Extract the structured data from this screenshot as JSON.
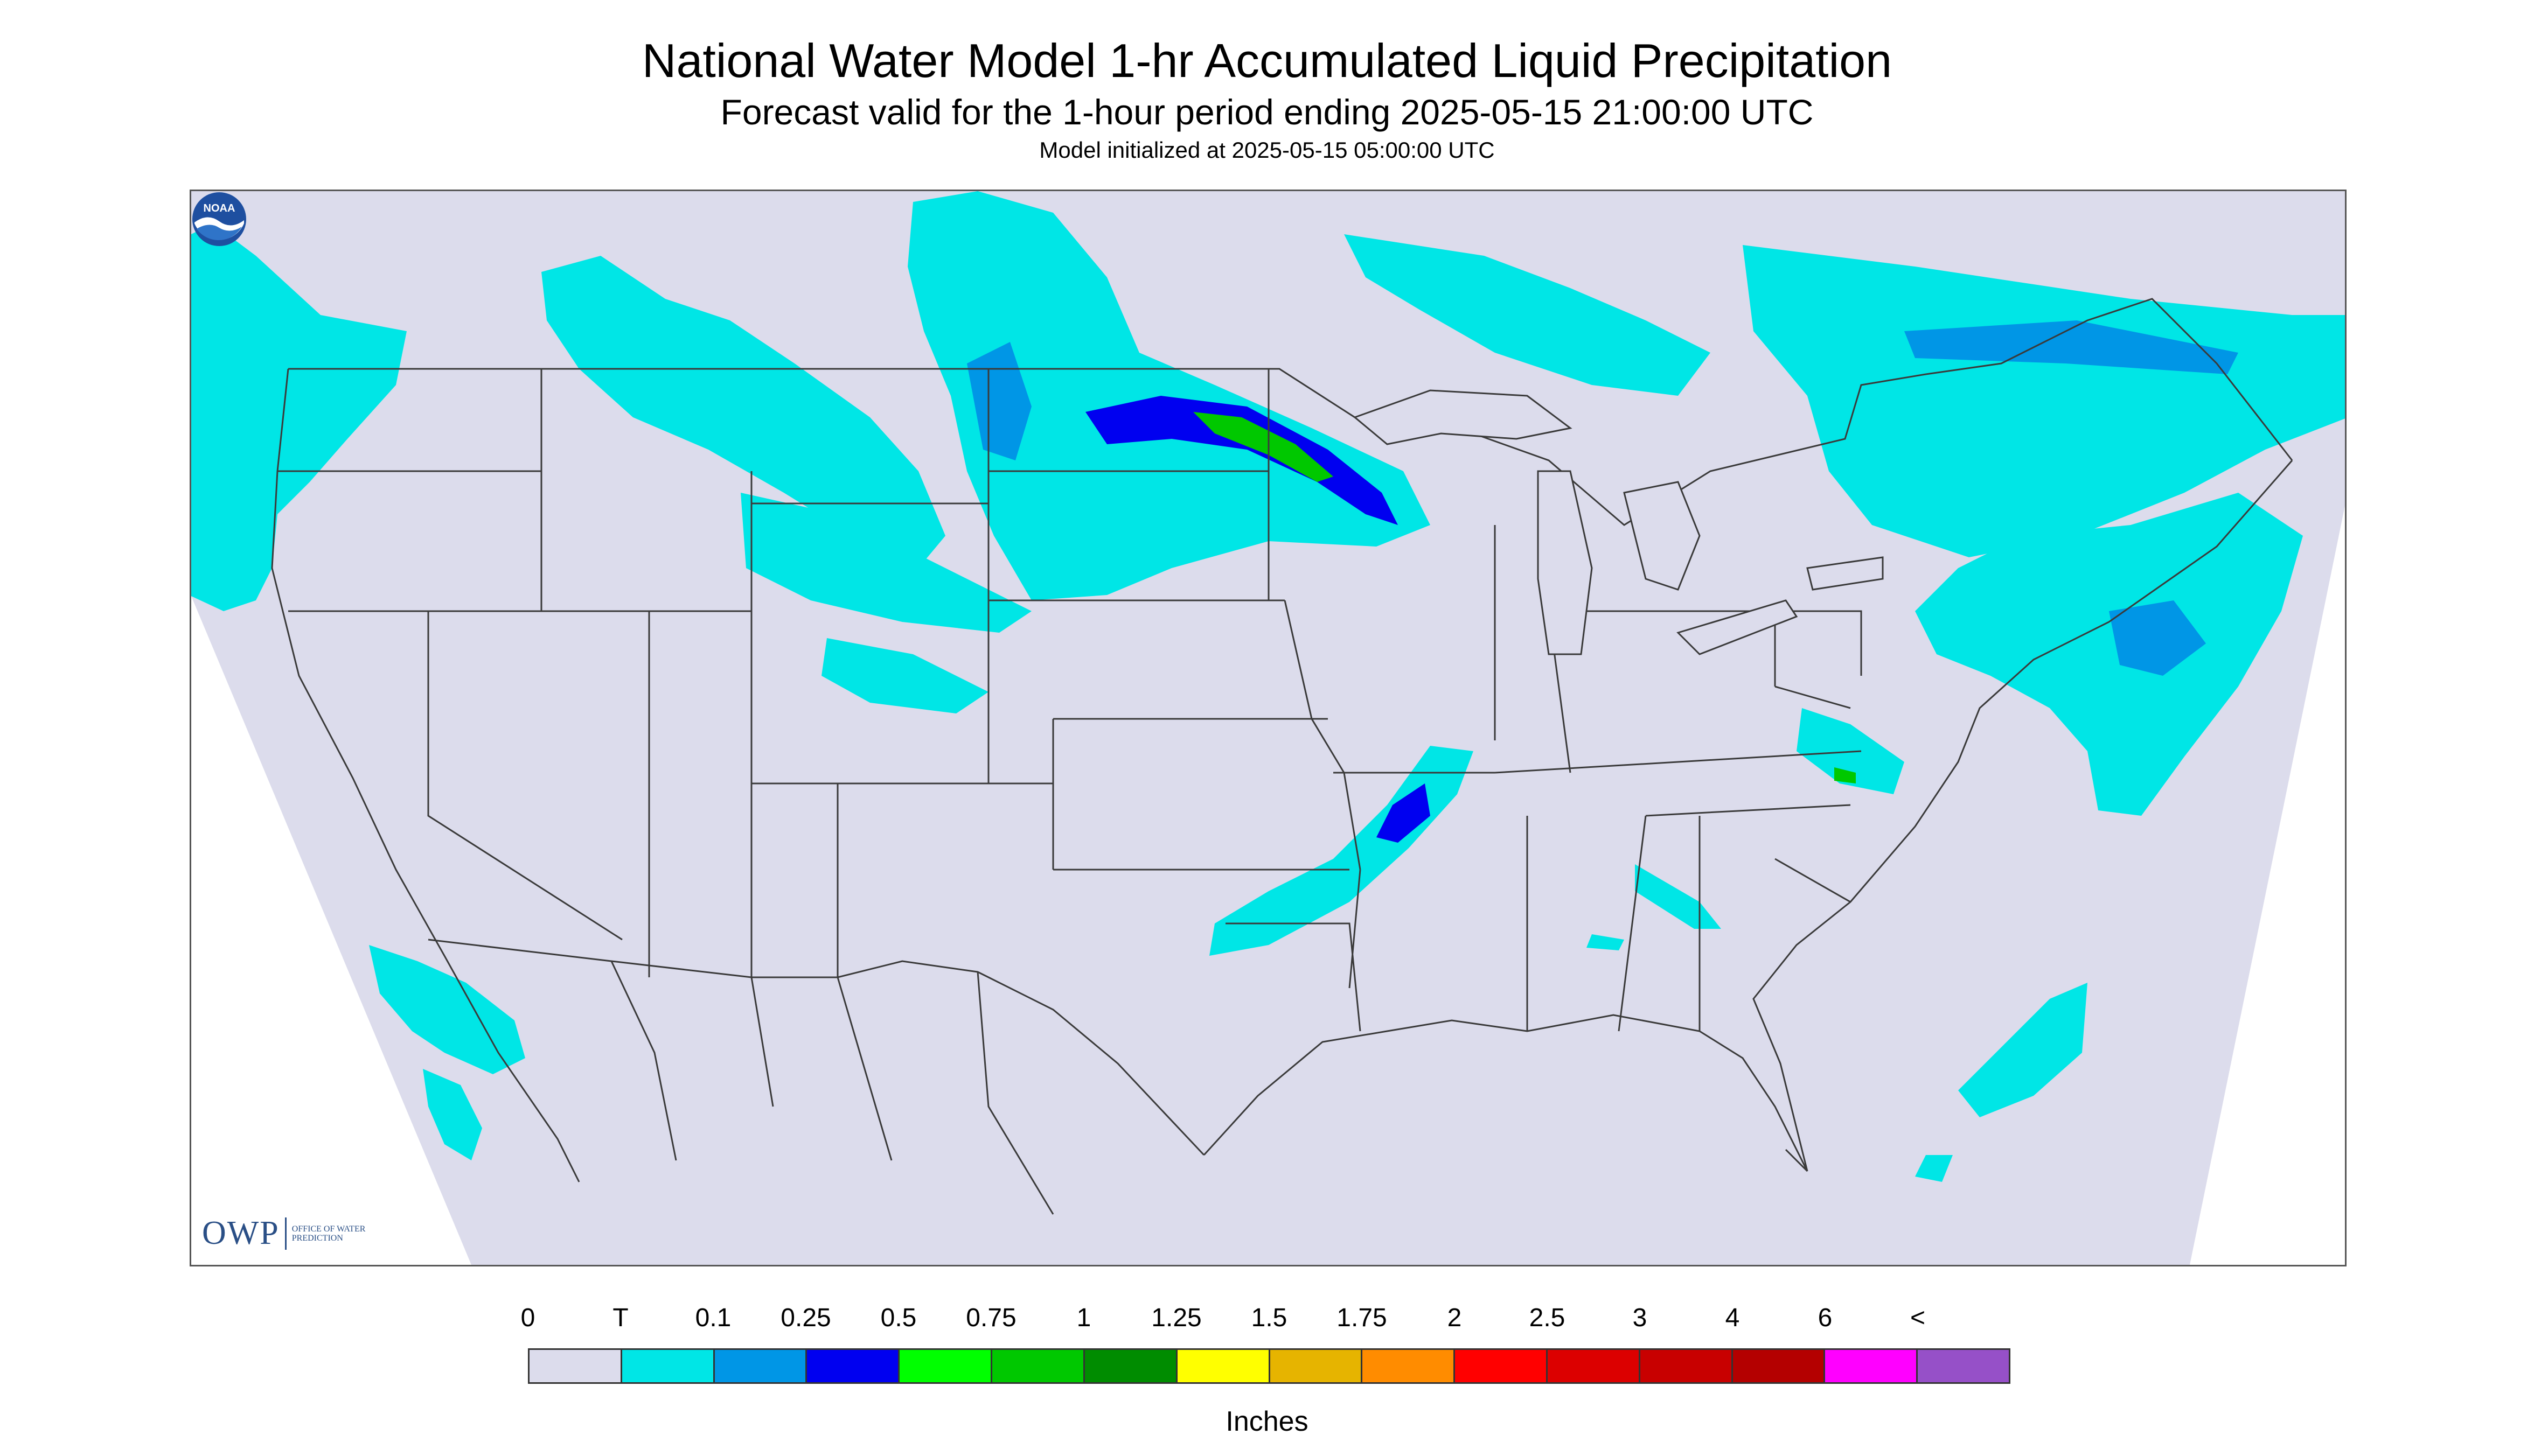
{
  "title": "National Water Model 1-hr Accumulated Liquid Precipitation",
  "subtitle": "Forecast valid for the 1-hour period ending 2025-05-15 21:00:00 UTC",
  "init_text": "Model initialized at 2025-05-15 05:00:00 UTC",
  "logo": {
    "mark": "OWP",
    "text": "OFFICE OF WATER PREDICTION",
    "noaa": "NOAA"
  },
  "legend": {
    "units": "Inches",
    "ticks": [
      "0",
      "T",
      "0.1",
      "0.25",
      "0.5",
      "0.75",
      "1",
      "1.25",
      "1.5",
      "1.75",
      "2",
      "2.5",
      "3",
      "4",
      "6",
      "<"
    ],
    "colors": [
      "#dcdcec",
      "#00e6e6",
      "#0096e6",
      "#0000f0",
      "#00ff00",
      "#00c800",
      "#008c00",
      "#ffff00",
      "#e6b400",
      "#ff8c00",
      "#ff0000",
      "#dc0000",
      "#c80000",
      "#b40000",
      "#ff00ff",
      "#9650c8"
    ]
  },
  "colors": {
    "domain_background": "#dcdcec",
    "trace": "#00e6e6",
    "light": "#0096e6",
    "moderate": "#0000f0",
    "heavy": "#00c800",
    "outside_domain": "#ffffff",
    "boundaries": "#3a3a3a"
  }
}
